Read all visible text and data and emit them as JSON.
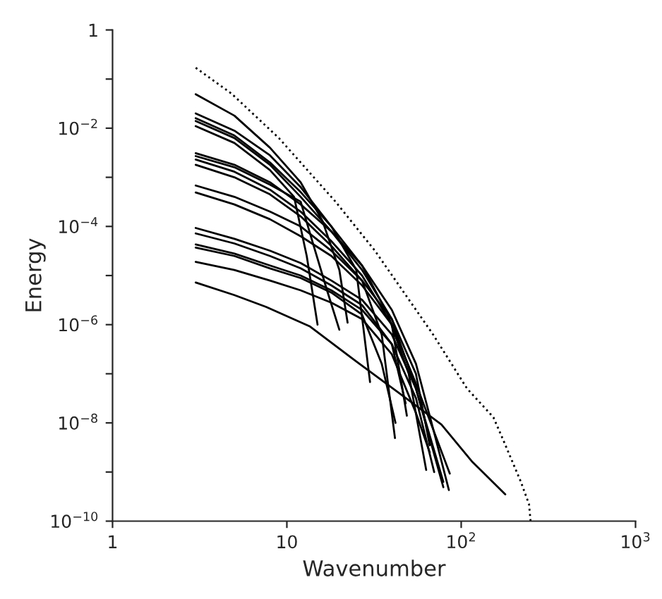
{
  "chart_data": {
    "type": "line",
    "xlabel": "Wavenumber",
    "ylabel": "Energy",
    "log": "xy",
    "grid": false,
    "legend": false,
    "marker": "none",
    "xlim": [
      1,
      1000
    ],
    "ylim": [
      1e-10,
      1
    ],
    "xticks": [
      {
        "value": 1,
        "label": "1"
      },
      {
        "value": 10,
        "label": "10"
      },
      {
        "value": 100,
        "label": "10$^{2}$"
      },
      {
        "value": 1000,
        "label": "10$^{3}$"
      }
    ],
    "yticks": [
      {
        "value": 1e-10,
        "label": "10$^{−10}$"
      },
      {
        "value": 1e-09,
        "label": null
      },
      {
        "value": 1e-08,
        "label": "10$^{−8}$"
      },
      {
        "value": 1e-07,
        "label": null
      },
      {
        "value": 1e-06,
        "label": "10$^{−6}$"
      },
      {
        "value": 1e-05,
        "label": null
      },
      {
        "value": 0.0001,
        "label": "10$^{−4}$"
      },
      {
        "value": 0.001,
        "label": null
      },
      {
        "value": 0.01,
        "label": "10$^{−2}$"
      },
      {
        "value": 0.1,
        "label": null
      },
      {
        "value": 1,
        "label": "1"
      }
    ],
    "series": [
      {
        "color": "#000000",
        "line_style": "solid",
        "x": [
          3,
          5,
          8,
          12,
          16,
          20,
          22.3
        ],
        "values": [
          0.049,
          0.018,
          0.004,
          0.00079,
          0.00013,
          1.3e-05,
          1.1e-06
        ]
      },
      {
        "color": "#000000",
        "line_style": "solid",
        "x": [
          3,
          5,
          8,
          12,
          18,
          25,
          30
        ],
        "values": [
          0.02,
          0.0089,
          0.0028,
          0.00063,
          0.0001,
          1.3e-05,
          6.8e-08
        ]
      },
      {
        "color": "#000000",
        "line_style": "solid",
        "x": [
          3,
          5,
          8,
          12,
          18,
          27,
          38,
          50,
          63
        ],
        "values": [
          0.016,
          0.0071,
          0.002,
          0.0005,
          0.0001,
          1.6e-05,
          1.6e-06,
          1e-07,
          1.1e-09
        ]
      },
      {
        "color": "#000000",
        "line_style": "solid",
        "x": [
          3,
          5,
          8,
          12,
          18,
          27,
          40,
          55,
          79
        ],
        "values": [
          0.014,
          0.0063,
          0.0018,
          0.0004,
          7.9e-05,
          1.3e-05,
          1.3e-06,
          5e-08,
          4.9e-10
        ]
      },
      {
        "color": "#000000",
        "line_style": "solid",
        "x": [
          3,
          5,
          8,
          11,
          13,
          15
        ],
        "values": [
          0.011,
          0.005,
          0.0014,
          0.0004,
          2.5e-05,
          1e-06
        ]
      },
      {
        "color": "#000000",
        "line_style": "solid",
        "x": [
          3,
          5,
          8,
          12,
          18,
          27,
          40,
          55,
          70,
          85
        ],
        "values": [
          0.0031,
          0.0018,
          0.00079,
          0.00028,
          7.9e-05,
          1.6e-05,
          2e-06,
          1.6e-07,
          6.3e-09,
          4.3e-10
        ]
      },
      {
        "color": "#000000",
        "line_style": "solid",
        "x": [
          3,
          5,
          8,
          12,
          14,
          17,
          20
        ],
        "values": [
          0.0027,
          0.0016,
          0.00071,
          0.00032,
          5e-05,
          5e-06,
          7.9e-07
        ]
      },
      {
        "color": "#000000",
        "line_style": "solid",
        "x": [
          3,
          5,
          8,
          12,
          18,
          27,
          40,
          48.8
        ],
        "values": [
          0.0023,
          0.0013,
          0.00056,
          0.0002,
          5e-05,
          1e-05,
          1e-06,
          1.4e-08
        ]
      },
      {
        "color": "#000000",
        "line_style": "solid",
        "x": [
          3,
          5,
          8,
          12,
          18,
          27,
          35,
          41.7
        ],
        "values": [
          0.0018,
          0.001,
          0.00045,
          0.00016,
          4e-05,
          7.9e-06,
          6.3e-07,
          4.9e-09
        ]
      },
      {
        "color": "#000000",
        "line_style": "solid",
        "x": [
          3,
          5,
          8,
          12,
          18,
          27,
          40,
          55,
          66
        ],
        "values": [
          0.00068,
          0.0004,
          0.0002,
          0.0001,
          3.2e-05,
          7.9e-06,
          1.3e-06,
          1e-07,
          3.5e-09
        ]
      },
      {
        "color": "#000000",
        "line_style": "solid",
        "x": [
          3,
          5,
          8,
          12,
          18,
          27,
          40,
          55,
          86
        ],
        "values": [
          0.00049,
          0.00028,
          0.00014,
          6.3e-05,
          2.5e-05,
          6.3e-06,
          1e-06,
          6.3e-08,
          9.3e-10
        ]
      },
      {
        "color": "#000000",
        "line_style": "solid",
        "x": [
          3,
          5,
          8,
          12,
          18,
          27,
          40,
          55,
          79
        ],
        "values": [
          9.3e-05,
          5.6e-05,
          3.2e-05,
          1.8e-05,
          7.9e-06,
          3.2e-06,
          6.3e-07,
          5e-08,
          6.3e-10
        ]
      },
      {
        "color": "#000000",
        "line_style": "solid",
        "x": [
          3,
          5,
          8,
          12,
          18,
          27,
          40,
          48
        ],
        "values": [
          7.2e-05,
          4.5e-05,
          2.5e-05,
          1.4e-05,
          6.3e-06,
          2.5e-06,
          4e-07,
          2.5e-08
        ]
      },
      {
        "color": "#000000",
        "line_style": "solid",
        "x": [
          3,
          5,
          8,
          12,
          18,
          27,
          40,
          55,
          70
        ],
        "values": [
          4.3e-05,
          2.8e-05,
          1.6e-05,
          1e-05,
          5e-06,
          2e-06,
          4e-07,
          3.2e-08,
          1e-09
        ]
      },
      {
        "color": "#000000",
        "line_style": "solid",
        "x": [
          3,
          5,
          8,
          12,
          18,
          27,
          35,
          42
        ],
        "values": [
          3.7e-05,
          2.5e-05,
          1.4e-05,
          8.9e-06,
          4.5e-06,
          1.6e-06,
          1.6e-07,
          1e-08
        ]
      },
      {
        "color": "#000000",
        "line_style": "solid",
        "x": [
          3,
          5,
          8,
          12,
          18,
          27,
          40,
          55,
          66
        ],
        "values": [
          1.9e-05,
          1.3e-05,
          7.9e-06,
          5e-06,
          2.8e-06,
          1.3e-06,
          2.5e-07,
          1.6e-08,
          2.5e-09
        ]
      },
      {
        "color": "#000000",
        "line_style": "solid",
        "x": [
          3,
          5,
          7.6,
          13.5,
          24.4,
          43,
          77,
          116,
          179
        ],
        "values": [
          7.2e-06,
          4e-06,
          2.3e-06,
          9.3e-07,
          1.9e-07,
          4.3e-08,
          9.3e-09,
          1.6e-09,
          3.5e-10
        ]
      },
      {
        "color": "#000000",
        "line_style": "dotted",
        "x": [
          3,
          4.8,
          9,
          19,
          32,
          69,
          108,
          153,
          172,
          220,
          245,
          250
        ],
        "values": [
          0.17,
          0.051,
          0.0063,
          0.00032,
          3.2e-05,
          6.3e-07,
          5e-08,
          1.3e-08,
          5e-09,
          6.3e-10,
          2.2e-10,
          1e-10
        ]
      }
    ]
  }
}
